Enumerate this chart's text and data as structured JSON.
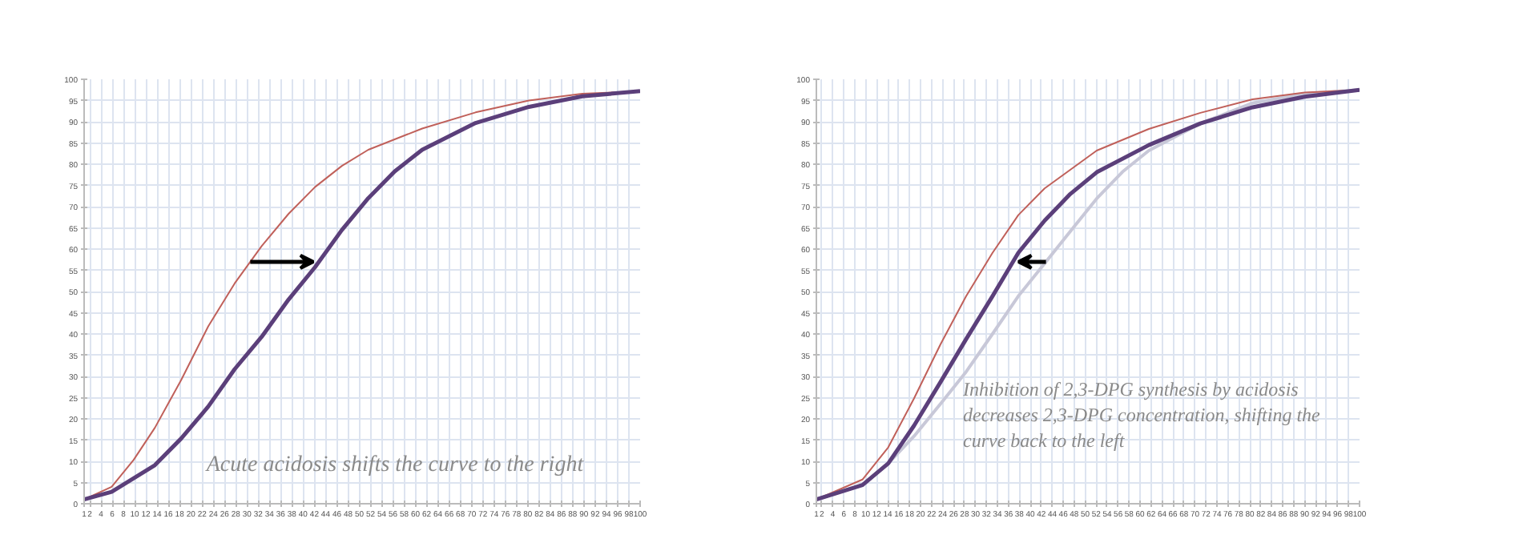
{
  "chart_data": [
    {
      "type": "line",
      "xlim": [
        1,
        100
      ],
      "ylim": [
        0,
        100
      ],
      "xticks": [
        1,
        2,
        4,
        6,
        8,
        10,
        12,
        14,
        16,
        18,
        20,
        22,
        24,
        26,
        28,
        30,
        32,
        34,
        36,
        38,
        40,
        42,
        44,
        46,
        48,
        50,
        52,
        54,
        56,
        58,
        60,
        62,
        64,
        66,
        68,
        70,
        72,
        74,
        76,
        78,
        80,
        82,
        84,
        86,
        88,
        90,
        92,
        94,
        96,
        98,
        100
      ],
      "yticks": [
        0,
        5,
        10,
        15,
        20,
        25,
        30,
        35,
        40,
        45,
        50,
        55,
        60,
        65,
        70,
        75,
        80,
        85,
        90,
        95,
        100
      ],
      "grid": true,
      "series": [
        {
          "color": "#c0605a",
          "x": [
            1,
            5.9,
            9.8,
            13.6,
            18.3,
            23.1,
            27.8,
            32.6,
            37.4,
            42.1,
            46.9,
            51.6,
            61.2,
            70.7,
            80.2,
            89.7,
            100
          ],
          "values": [
            1,
            4,
            10.3,
            17.9,
            29.2,
            41.8,
            51.9,
            60.7,
            68.3,
            74.6,
            79.6,
            83.4,
            88.4,
            92.2,
            95,
            96.6,
            97.2
          ]
        },
        {
          "color": "#5b3f7a",
          "x": [
            1,
            5.9,
            13.6,
            18.3,
            23.1,
            27.8,
            32.6,
            37.4,
            42.1,
            46.9,
            51.6,
            56.3,
            61.2,
            70.7,
            80.2,
            89.7,
            100
          ],
          "values": [
            1,
            2.8,
            9.1,
            15.4,
            22.9,
            31.7,
            39.3,
            48.1,
            55.7,
            64.5,
            72,
            78.3,
            83.4,
            89.7,
            93.5,
            96,
            97.2
          ]
        }
      ],
      "annotations": [
        "Acute acidosis shifts the curve to the right"
      ]
    },
    {
      "type": "line",
      "xlim": [
        1,
        100
      ],
      "ylim": [
        0,
        100
      ],
      "xticks": [
        1,
        2,
        4,
        6,
        8,
        10,
        12,
        14,
        16,
        18,
        20,
        22,
        24,
        26,
        28,
        30,
        32,
        34,
        36,
        38,
        40,
        42,
        44,
        46,
        48,
        50,
        52,
        54,
        56,
        58,
        60,
        62,
        64,
        66,
        68,
        70,
        72,
        74,
        76,
        78,
        80,
        82,
        84,
        86,
        88,
        90,
        92,
        94,
        96,
        98,
        100
      ],
      "yticks": [
        0,
        5,
        10,
        15,
        20,
        25,
        30,
        35,
        40,
        45,
        50,
        55,
        60,
        65,
        70,
        75,
        80,
        85,
        90,
        95,
        100
      ],
      "grid": true,
      "series": [
        {
          "color": "#c8c8d8",
          "x": [
            1,
            9.4,
            14.1,
            18.8,
            23.6,
            28.3,
            33.1,
            37.8,
            42.6,
            47.3,
            52.1,
            56.8,
            61.6,
            71,
            80.5,
            90,
            100
          ],
          "values": [
            1,
            4.4,
            9.5,
            15.9,
            23.5,
            31.1,
            40,
            48.9,
            56.6,
            64.2,
            71.9,
            78.2,
            83.2,
            89.6,
            94.4,
            96.6,
            97.5
          ]
        },
        {
          "color": "#c0605a",
          "x": [
            1,
            9.4,
            14.1,
            18.8,
            23.6,
            28.3,
            33.1,
            37.8,
            42.6,
            52.1,
            61.6,
            71,
            80.5,
            90,
            100
          ],
          "values": [
            1,
            5.7,
            13.3,
            24.8,
            37.5,
            48.9,
            59.1,
            68,
            74.3,
            83.2,
            88.3,
            92.1,
            95.3,
            96.9,
            97.5
          ]
        },
        {
          "color": "#5b3f7a",
          "x": [
            1,
            9.4,
            14.1,
            18.8,
            23.6,
            28.3,
            33.1,
            37.8,
            42.6,
            47.3,
            52.1,
            61.6,
            71,
            80.5,
            90,
            100
          ],
          "values": [
            1,
            4.4,
            9.5,
            18.4,
            28.6,
            38.8,
            48.9,
            59.1,
            66.7,
            73,
            78.1,
            84.5,
            89.6,
            93.4,
            95.9,
            97.5
          ]
        }
      ],
      "annotations": [
        "Inhibition of 2,3-DPG synthesis by acidosis decreases 2,3-DPG concentration, shifting the curve back to the left"
      ]
    }
  ]
}
